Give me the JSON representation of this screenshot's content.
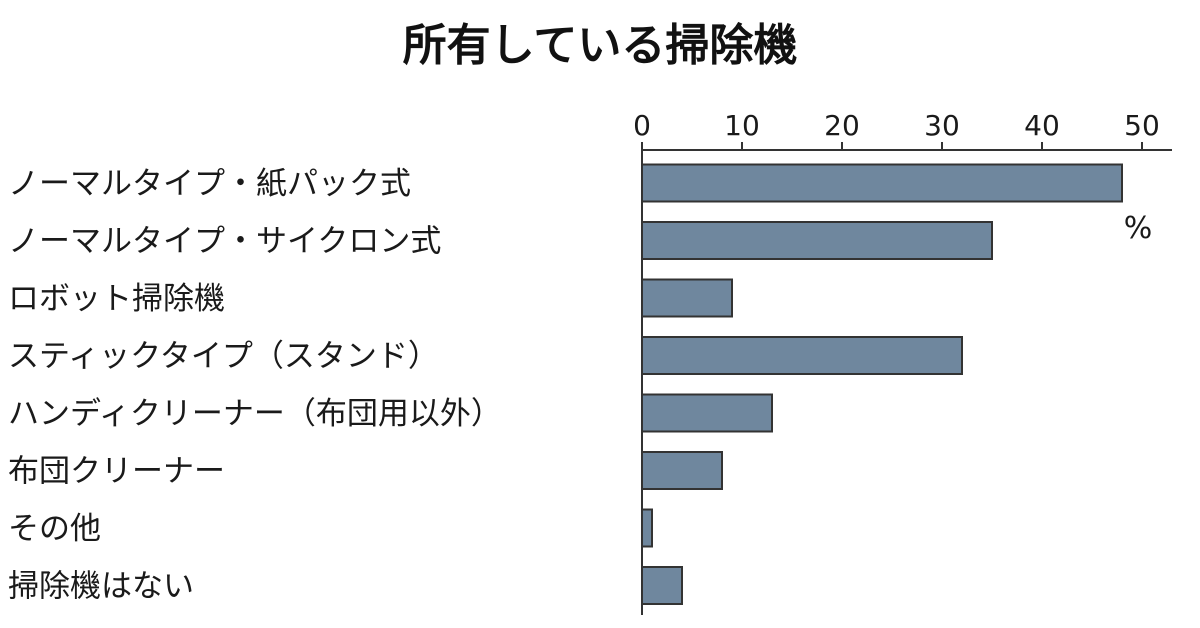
{
  "chart_data": {
    "type": "bar",
    "orientation": "horizontal",
    "title": "所有している掃除機",
    "unit": "%",
    "categories": [
      "ノーマルタイプ・紙パック式",
      "ノーマルタイプ・サイクロン式",
      "ロボット掃除機",
      "スティックタイプ（スタンド）",
      "ハンディクリーナー（布団用以外）",
      "布団クリーナー",
      "その他",
      "掃除機はない"
    ],
    "values": [
      48,
      35,
      9,
      32,
      13,
      8,
      1,
      4
    ],
    "xlim": [
      0,
      52
    ],
    "ticks": [
      0,
      10,
      20,
      30,
      40,
      50
    ],
    "tick_labels": [
      "0",
      "10",
      "20",
      "30",
      "40",
      "50"
    ],
    "grid": false,
    "legend": "none",
    "colors": {
      "bar": "#6f879e",
      "bar_stroke": "#333333",
      "axis": "#333333"
    }
  }
}
